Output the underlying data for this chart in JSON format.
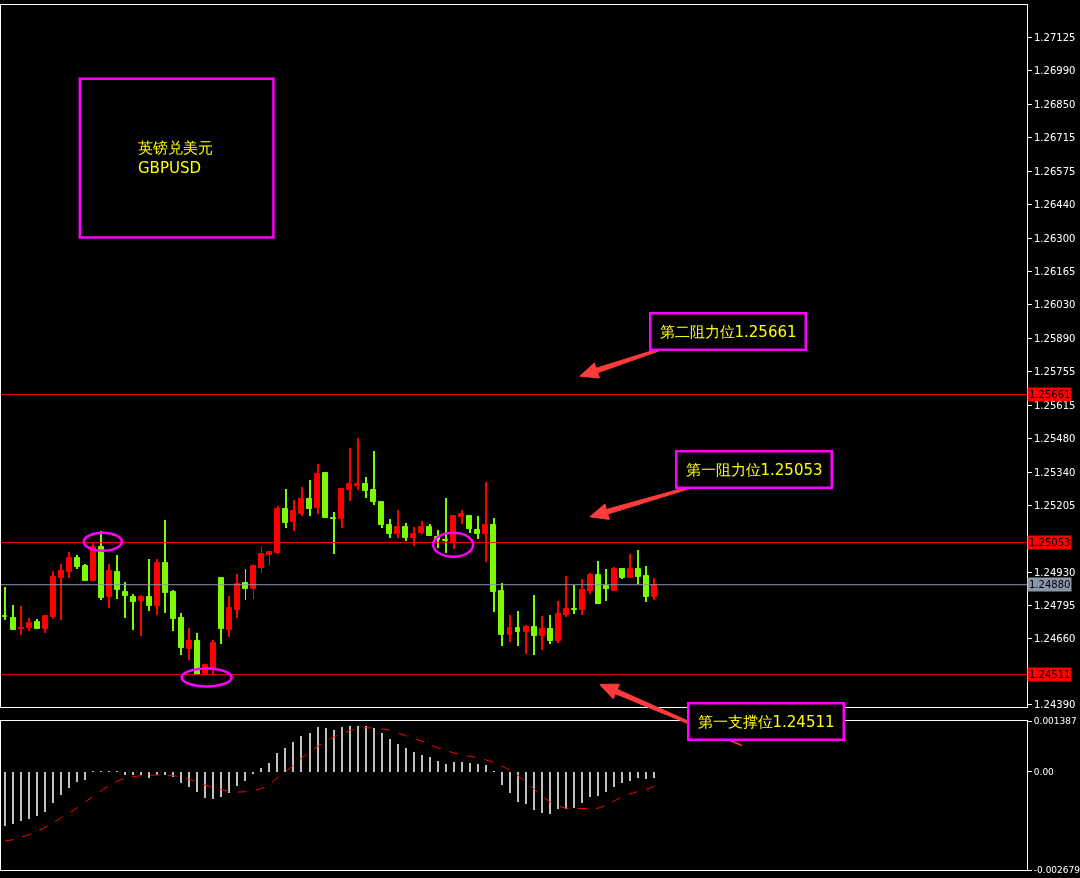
{
  "chart_data": [
    {
      "type": "candlestick",
      "title": "英镑兑美元\nGBPUSD",
      "categories": [
        null,
        null,
        null,
        null,
        null,
        null,
        null,
        null,
        null,
        null,
        null,
        null,
        null,
        null,
        null,
        null,
        null,
        null,
        null,
        null,
        null,
        null,
        null,
        null,
        null,
        null,
        null,
        null,
        null,
        null,
        null,
        null,
        null,
        null,
        null,
        null,
        null,
        null,
        null,
        null,
        null,
        null,
        null,
        null,
        null,
        null,
        null,
        null,
        null,
        null,
        null,
        null,
        null,
        null,
        null,
        null,
        null,
        null,
        null,
        null,
        null,
        null,
        null,
        null,
        null,
        null,
        null,
        null,
        null,
        null,
        null,
        null,
        null,
        null,
        null,
        null,
        null,
        null,
        null,
        null,
        null,
        null,
        null,
        null,
        null,
        null,
        null,
        null,
        null,
        null,
        null,
        null,
        null,
        null,
        null,
        null,
        null,
        null,
        null,
        null,
        null,
        null,
        null,
        null,
        null,
        null,
        null,
        null,
        null,
        null,
        null,
        null,
        null,
        null,
        null,
        null,
        null,
        null,
        null,
        null,
        null,
        null,
        null,
        null,
        null,
        null,
        null,
        null
      ],
      "ohlc": [
        [
          1.24752,
          1.24871,
          1.24734,
          1.24749
        ],
        [
          1.24745,
          1.24796,
          1.24693,
          1.24696
        ],
        [
          1.24698,
          1.24792,
          1.24672,
          1.24704
        ],
        [
          1.24703,
          1.24745,
          1.24689,
          1.24722
        ],
        [
          1.24729,
          1.24738,
          1.24697,
          1.24698
        ],
        [
          1.24697,
          1.24751,
          1.24682,
          1.24751
        ],
        [
          1.24748,
          1.24935,
          1.2474,
          1.24911
        ],
        [
          1.24908,
          1.24964,
          1.24734,
          1.24935
        ],
        [
          1.24933,
          1.25014,
          1.24908,
          1.24989
        ],
        [
          1.24989,
          1.25,
          1.24945,
          1.24953
        ],
        [
          1.24956,
          1.24964,
          1.24896,
          1.24896
        ],
        [
          1.24896,
          1.25053,
          1.24896,
          1.25033
        ],
        [
          1.25033,
          1.251,
          1.24816,
          1.24826
        ],
        [
          1.2483,
          1.24964,
          1.24785,
          1.24935
        ],
        [
          1.24931,
          1.25001,
          1.24822,
          1.24859
        ],
        [
          1.24852,
          1.2489,
          1.24744,
          1.24834
        ],
        [
          1.24831,
          1.24841,
          1.24693,
          1.24809
        ],
        [
          1.24812,
          1.24837,
          1.24668,
          1.24829
        ],
        [
          1.24829,
          1.24985,
          1.24771,
          1.24793
        ],
        [
          1.24793,
          1.24985,
          1.24755,
          1.24968
        ],
        [
          1.24968,
          1.25145,
          1.24764,
          1.24846
        ],
        [
          1.24849,
          1.24857,
          1.24689,
          1.2474
        ],
        [
          1.24742,
          1.24763,
          1.2459,
          1.2462
        ],
        [
          1.24615,
          1.24701,
          1.2457,
          1.24648
        ],
        [
          1.24648,
          1.24681,
          1.24511,
          1.24511
        ],
        [
          1.24511,
          1.24552,
          1.24511,
          1.24549
        ],
        [
          1.24529,
          1.24652,
          1.24511,
          1.2464
        ],
        [
          1.24907,
          1.24907,
          1.24637,
          1.24697
        ],
        [
          1.24693,
          1.24833,
          1.24666,
          1.24783
        ],
        [
          1.24775,
          1.24923,
          1.24744,
          1.24882
        ],
        [
          1.24886,
          1.24944,
          1.24816,
          1.24863
        ],
        [
          1.24862,
          1.24964,
          1.2482,
          1.24956
        ],
        [
          1.24949,
          1.25038,
          1.24929,
          1.25005
        ],
        [
          1.25001,
          1.25014,
          1.24956,
          1.25014
        ],
        [
          1.25009,
          1.25203,
          1.25005,
          1.2519
        ],
        [
          1.2519,
          1.25273,
          1.25114,
          1.25134
        ],
        [
          1.25138,
          1.25227,
          1.25101,
          1.25182
        ],
        [
          1.25171,
          1.25281,
          1.25163,
          1.25231
        ],
        [
          1.25231,
          1.25309,
          1.25163,
          1.25192
        ],
        [
          1.25196,
          1.25375,
          1.25171,
          1.25334
        ],
        [
          1.25338,
          1.25338,
          1.25155,
          1.25155
        ],
        [
          1.25153,
          1.25178,
          1.25007,
          1.25151
        ],
        [
          1.25151,
          1.25277,
          1.25114,
          1.25273
        ],
        [
          1.2527,
          1.25441,
          1.25225,
          1.25293
        ],
        [
          1.25286,
          1.25482,
          1.25268,
          1.25293
        ],
        [
          1.25293,
          1.25322,
          1.25237,
          1.25266
        ],
        [
          1.25268,
          1.25429,
          1.25208,
          1.2522
        ],
        [
          1.25219,
          1.25223,
          1.25114,
          1.25126
        ],
        [
          1.25127,
          1.25149,
          1.25072,
          1.25089
        ],
        [
          1.25089,
          1.25186,
          1.25072,
          1.25119
        ],
        [
          1.25119,
          1.25133,
          1.2506,
          1.25072
        ],
        [
          1.25072,
          1.25116,
          1.2504,
          1.25088
        ],
        [
          1.25093,
          1.25142,
          1.25089,
          1.25115
        ],
        [
          1.25119,
          1.25129,
          1.25079,
          1.25081
        ],
        [
          1.25074,
          1.25104,
          1.25029,
          1.25063
        ],
        [
          1.25063,
          1.25236,
          1.25009,
          1.2506
        ],
        [
          1.25057,
          1.25162,
          1.25026,
          1.25162
        ],
        [
          1.25157,
          1.25186,
          1.2513,
          1.2517
        ],
        [
          1.25164,
          1.25164,
          1.25093,
          1.25107
        ],
        [
          1.25104,
          1.25162,
          1.25068,
          1.25089
        ],
        [
          1.25089,
          1.25301,
          1.24974,
          1.25125
        ],
        [
          1.25125,
          1.25156,
          1.24768,
          1.24851
        ],
        [
          1.24856,
          1.24886,
          1.24629,
          1.24674
        ],
        [
          1.24674,
          1.24755,
          1.24644,
          1.24701
        ],
        [
          1.24701,
          1.24771,
          1.24629,
          1.24686
        ],
        [
          1.24686,
          1.24714,
          1.24596,
          1.24705
        ],
        [
          1.24705,
          1.24837,
          1.24592,
          1.24671
        ],
        [
          1.2467,
          1.24751,
          1.24611,
          1.24697
        ],
        [
          1.24697,
          1.24755,
          1.24637,
          1.24649
        ],
        [
          1.24649,
          1.24812,
          1.24641,
          1.24759
        ],
        [
          1.24756,
          1.24915,
          1.24748,
          1.24779
        ],
        [
          1.24779,
          1.24878,
          1.24759,
          1.24777
        ],
        [
          1.24777,
          1.24903,
          1.24755,
          1.24857
        ],
        [
          1.24855,
          1.24927,
          1.24842,
          1.24919
        ],
        [
          1.24919,
          1.24977,
          1.24801,
          1.24801
        ],
        [
          1.24875,
          1.24944,
          1.24812,
          1.24863
        ],
        [
          1.24855,
          1.24952,
          1.24855,
          1.24944
        ],
        [
          1.24944,
          1.24948,
          1.24904,
          1.24908
        ],
        [
          1.24908,
          1.25005,
          1.24908,
          1.24944
        ],
        [
          1.24944,
          1.25022,
          1.24883,
          1.24912
        ],
        [
          1.24915,
          1.24956,
          1.24809,
          1.2483
        ],
        [
          1.2483,
          1.24907,
          1.24818,
          1.2488
        ],
        null,
        null,
        null,
        null,
        null,
        null,
        null,
        null,
        null,
        null,
        null,
        null,
        null,
        null,
        null,
        null,
        null,
        null,
        null,
        null,
        null,
        null,
        null,
        null,
        null,
        null,
        null,
        null,
        null,
        null,
        null,
        null,
        null,
        null,
        null,
        null,
        null,
        null,
        null,
        null,
        null,
        null,
        null,
        null,
        null,
        null
      ],
      "colors": [
        "#7cfc00",
        "#7cfc00",
        "#ff0000",
        "#ff0000",
        "#7cfc00",
        "#ff0000",
        "#ff0000",
        "#ff0000",
        "#ff0000",
        "#7cfc00",
        "#7cfc00",
        "#ff0000",
        "#7cfc00",
        "#ff0000",
        "#7cfc00",
        "#7cfc00",
        "#7cfc00",
        "#ff0000",
        "#7cfc00",
        "#ff0000",
        "#7cfc00",
        "#7cfc00",
        "#7cfc00",
        "#ff0000",
        "#7cfc00",
        "#ff0000",
        "#ff0000",
        "#7cfc00",
        "#ff0000",
        "#ff0000",
        "#7cfc00",
        "#ff0000",
        "#ff0000",
        "#ff0000",
        "#ff0000",
        "#7cfc00",
        "#ff0000",
        "#ff0000",
        "#7cfc00",
        "#ff0000",
        "#7cfc00",
        "#7cfc00",
        "#ff0000",
        "#ff0000",
        "#ff0000",
        "#7cfc00",
        "#7cfc00",
        "#7cfc00",
        "#7cfc00",
        "#ff0000",
        "#7cfc00",
        "#ff0000",
        "#ff0000",
        "#7cfc00",
        "#7cfc00",
        "#7cfc00",
        "#ff0000",
        "#ff0000",
        "#7cfc00",
        "#7cfc00",
        "#ff0000",
        "#7cfc00",
        "#7cfc00",
        "#ff0000",
        "#7cfc00",
        "#ff0000",
        "#7cfc00",
        "#ff0000",
        "#7cfc00",
        "#ff0000",
        "#ff0000",
        "#7cfc00",
        "#ff0000",
        "#ff0000",
        "#7cfc00",
        "#7cfc00",
        "#ff0000",
        "#7cfc00",
        "#ff0000",
        "#7cfc00",
        "#7cfc00",
        "#ff0000",
        null,
        null,
        null,
        null,
        null,
        null,
        null,
        null,
        null,
        null,
        null,
        null,
        null,
        null,
        null,
        null,
        null,
        null,
        null,
        null,
        null,
        null,
        null,
        null,
        null,
        null,
        null,
        null,
        null,
        null,
        null,
        null,
        null,
        null,
        null,
        null,
        null,
        null,
        null,
        null,
        null,
        null,
        null,
        null,
        null,
        null
      ],
      "ylim": [
        1.2438,
        1.2726
      ],
      "yticks": [
        1.27125,
        {
          "value": 1.2699,
          "label": "1.26990"
        },
        {
          "value": 1.2685,
          "label": "1.26850"
        },
        1.26715,
        1.26575,
        {
          "value": 1.2644,
          "label": "1.26440"
        },
        {
          "value": 1.263,
          "label": "1.26300"
        },
        1.26165,
        {
          "value": 1.2603,
          "label": "1.26030"
        },
        {
          "value": 1.2589,
          "label": "1.25890"
        },
        1.25755,
        1.25615,
        {
          "value": 1.2548,
          "label": "1.25480"
        },
        {
          "value": 1.2534,
          "label": "1.25340"
        },
        1.25205,
        {
          "value": 1.2507,
          "label": null
        },
        {
          "value": 1.2493,
          "label": "1.24930"
        },
        1.24795,
        {
          "value": 1.2466,
          "label": "1.24660"
        },
        {
          "value": 1.24525,
          "label": null
        },
        {
          "value": 1.2439,
          "label": "1.24390"
        }
      ],
      "tick_labels": "y",
      "ref_lines": [
        {
          "axis": "y",
          "value": 1.25661,
          "label": "1.25661",
          "color": "#ff0000"
        },
        {
          "axis": "y",
          "value": 1.25053,
          "label": "1.25053",
          "color": "#ff0000"
        },
        {
          "axis": "y",
          "value": 1.2488,
          "label": "1.24880",
          "color": "#8a96a8"
        },
        {
          "axis": "y",
          "value": 1.24511,
          "label": "1.24511",
          "color": "#ff0000"
        }
      ],
      "annotations": [
        "第二阻力位1.25661",
        "第一阻力位1.25053",
        "第一支撑位1.24511"
      ]
    },
    {
      "type": "bar",
      "categories": [
        null,
        null,
        null,
        null,
        null,
        null,
        null,
        null,
        null,
        null,
        null,
        null,
        null,
        null,
        null,
        null,
        null,
        null,
        null,
        null,
        null,
        null,
        null,
        null,
        null,
        null,
        null,
        null,
        null,
        null,
        null,
        null,
        null,
        null,
        null,
        null,
        null,
        null,
        null,
        null,
        null,
        null,
        null,
        null,
        null,
        null,
        null,
        null,
        null,
        null,
        null,
        null,
        null,
        null,
        null,
        null,
        null,
        null,
        null,
        null,
        null,
        null,
        null,
        null,
        null,
        null,
        null,
        null,
        null,
        null,
        null,
        null,
        null,
        null,
        null,
        null,
        null,
        null,
        null,
        null,
        null,
        null,
        null,
        null,
        null,
        null,
        null,
        null,
        null,
        null,
        null,
        null,
        null,
        null,
        null,
        null,
        null,
        null,
        null,
        null,
        null,
        null,
        null,
        null,
        null,
        null,
        null,
        null,
        null,
        null,
        null,
        null,
        null,
        null,
        null,
        null,
        null,
        null,
        null,
        null,
        null,
        null,
        null,
        null,
        null,
        null,
        null,
        null
      ],
      "series": [
        {
          "type": "bar",
          "color": "#c0c0c0",
          "values": [
            -0.00148,
            -0.00143,
            -0.00135,
            -0.00128,
            -0.0012,
            -0.0011,
            -0.00085,
            -0.00064,
            -0.00045,
            -0.00028,
            -0.00022,
            2e-05,
            2e-05,
            2e-05,
            2e-05,
            -8e-05,
            -0.0001,
            -0.0001,
            -0.00016,
            -0.0001,
            -0.0001,
            -0.00013,
            -0.00031,
            -0.00043,
            -0.00056,
            -0.00071,
            -0.00074,
            -0.00068,
            -0.00059,
            -0.00039,
            -0.00024,
            -7e-05,
            9e-05,
            0.00024,
            0.00051,
            0.00066,
            0.00082,
            0.00098,
            0.00107,
            0.00122,
            0.0012,
            0.00114,
            0.00122,
            0.00125,
            0.00124,
            0.00124,
            0.0012,
            0.00105,
            0.00089,
            0.00077,
            0.00064,
            0.00053,
            0.00047,
            0.00039,
            0.00029,
            0.00022,
            0.00026,
            0.00026,
            0.00024,
            0.0002,
            0.00018,
            1e-05,
            -0.00036,
            -0.00059,
            -0.00082,
            -0.00089,
            -0.00105,
            -0.00112,
            -0.00116,
            -0.00102,
            -0.00102,
            -0.00098,
            -0.00085,
            -0.0007,
            -0.00066,
            -0.00056,
            -0.00043,
            -0.00031,
            -0.00025,
            -0.00018,
            -0.0002,
            -0.00016,
            null,
            null,
            null,
            null,
            null,
            null,
            null,
            null,
            null,
            null,
            null,
            null,
            null,
            null,
            null,
            null,
            null,
            null,
            null,
            null,
            null,
            null,
            null,
            null,
            null,
            null,
            null,
            null,
            null,
            null,
            null,
            null,
            null,
            null,
            null,
            null,
            null,
            null,
            null,
            null,
            null,
            null,
            null,
            null,
            null,
            null
          ]
        },
        {
          "type": "line",
          "color": "#ff0000",
          "line_style": "dashed",
          "values": [
            -0.00189,
            -0.00185,
            -0.00179,
            -0.00171,
            -0.00162,
            -0.00151,
            -0.00139,
            -0.00125,
            -0.00112,
            -0.00098,
            -0.00082,
            -0.00066,
            -0.00051,
            -0.00037,
            -0.00025,
            -0.00017,
            -0.00013,
            -0.0001,
            -9e-05,
            -8e-05,
            -8e-05,
            -0.0001,
            -0.00014,
            -0.0002,
            -0.00028,
            -0.00036,
            -0.00043,
            -0.00048,
            -0.00053,
            -0.00055,
            -0.00054,
            -0.00051,
            -0.00045,
            -0.00033,
            -0.00016,
            1e-05,
            0.00018,
            0.00038,
            0.00055,
            0.0007,
            0.00084,
            0.00095,
            0.00105,
            0.00113,
            0.00118,
            0.00121,
            0.0012,
            0.00118,
            0.00114,
            0.00107,
            0.00099,
            0.00091,
            0.00084,
            0.00075,
            0.00066,
            0.00059,
            0.00052,
            0.00046,
            0.00043,
            0.00038,
            0.00033,
            0.00026,
            0.00016,
            5e-05,
            -0.0001,
            -0.00028,
            -0.00047,
            -0.00066,
            -0.00082,
            -0.00093,
            -0.00099,
            -0.001,
            -0.001,
            -0.001,
            -0.00099,
            -0.00091,
            -0.00079,
            -0.00068,
            -0.0006,
            -0.00053,
            -0.00048,
            -0.00039,
            null,
            null,
            null,
            null,
            null,
            null,
            null,
            null,
            null,
            null,
            null,
            null,
            null,
            null,
            null,
            null,
            null,
            null,
            null,
            null,
            null,
            null,
            null,
            null,
            null,
            null,
            null,
            null,
            null,
            null,
            null,
            null,
            null,
            null,
            null,
            null,
            null,
            null,
            null,
            null,
            null,
            null,
            null,
            null,
            null,
            null
          ]
        }
      ],
      "ylim": [
        -0.002679,
        0.001387
      ],
      "yticks": [
        0.001387,
        {
          "value": 0,
          "label": "0.00"
        },
        -0.002679
      ],
      "tick_labels": "y"
    }
  ]
}
